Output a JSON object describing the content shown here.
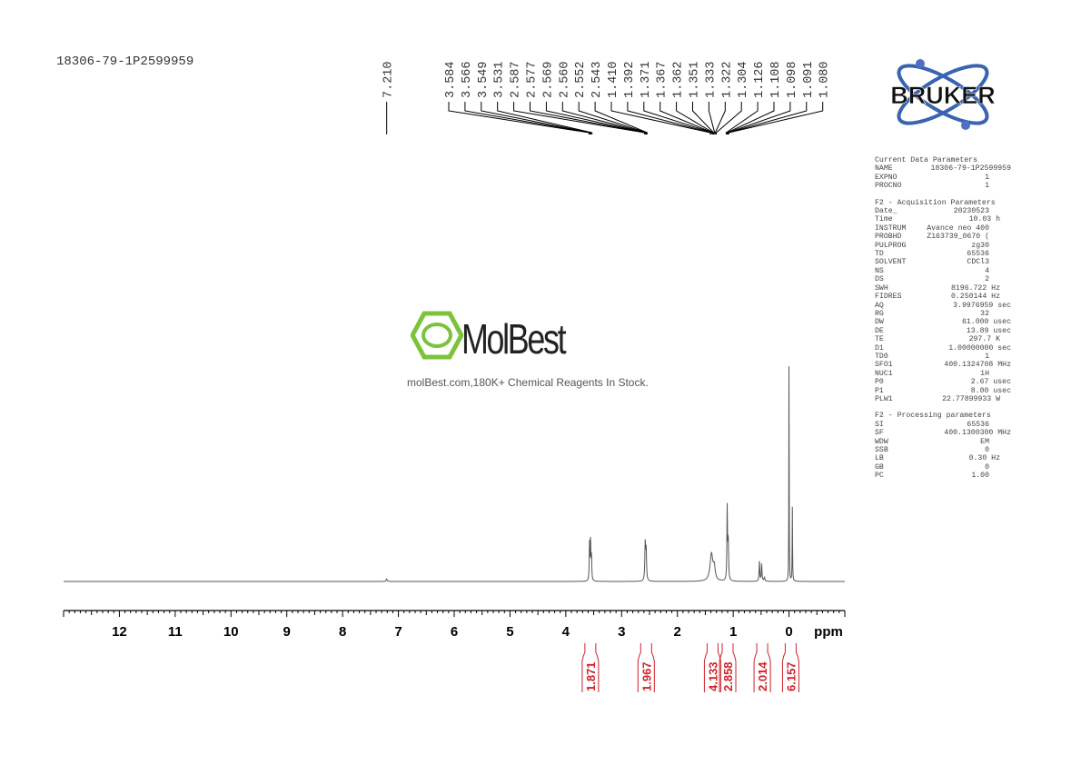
{
  "sample_name": "18306-79-1P2599959",
  "watermark": {
    "name": "MolBest",
    "tagline": "molBest.com,180K+ Chemical Reagents In Stock."
  },
  "logo": {
    "text": "BRUKER",
    "colors": {
      "orbit": "#3a64b0",
      "dot": "#4a72c0",
      "text": "#111111"
    }
  },
  "parameters": {
    "current_title": "Current Data Parameters",
    "current": [
      [
        "NAME",
        "18306-79-1P2599959"
      ],
      [
        "EXPNO",
        "1"
      ],
      [
        "PROCNO",
        "1"
      ]
    ],
    "acq_title": "F2 - Acquisition Parameters",
    "acq": [
      [
        "Date_",
        "20230523"
      ],
      [
        "Time",
        "10.03 h"
      ],
      [
        "INSTRUM",
        "Avance neo 400"
      ],
      [
        "PROBHD",
        "Z163739_0670 ("
      ],
      [
        "PULPROG",
        "zg30"
      ],
      [
        "TD",
        "65536"
      ],
      [
        "SOLVENT",
        "CDCl3"
      ],
      [
        "NS",
        "4"
      ],
      [
        "DS",
        "2"
      ],
      [
        "SWH",
        "8196.722 Hz"
      ],
      [
        "FIDRES",
        "0.250144 Hz"
      ],
      [
        "AQ",
        "3.9976959 sec"
      ],
      [
        "RG",
        "32"
      ],
      [
        "DW",
        "61.000 usec"
      ],
      [
        "DE",
        "13.89 usec"
      ],
      [
        "TE",
        "297.7 K"
      ],
      [
        "D1",
        "1.00000000 sec"
      ],
      [
        "TD0",
        "1"
      ],
      [
        "SFO1",
        "400.1324708 MHz"
      ],
      [
        "NUC1",
        "1H"
      ],
      [
        "P0",
        "2.67 usec"
      ],
      [
        "P1",
        "8.00 usec"
      ],
      [
        "PLW1",
        "22.77899933 W"
      ]
    ],
    "proc_title": "F2 - Processing parameters",
    "proc": [
      [
        "SI",
        "65536"
      ],
      [
        "SF",
        "400.1300300 MHz"
      ],
      [
        "WDW",
        "EM"
      ],
      [
        "SSB",
        "0"
      ],
      [
        "LB",
        "0.30 Hz"
      ],
      [
        "GB",
        "0"
      ],
      [
        "PC",
        "1.00"
      ]
    ]
  },
  "chart_data": {
    "type": "line",
    "title": "",
    "xlabel": "ppm",
    "xlim": [
      13,
      -1
    ],
    "x_ticks": [
      "12",
      "11",
      "10",
      "9",
      "8",
      "7",
      "6",
      "5",
      "4",
      "3",
      "2",
      "1",
      "0"
    ],
    "grid": false,
    "peak_labels_single": [
      "7.210"
    ],
    "peak_labels": [
      "3.584",
      "3.566",
      "3.549",
      "3.531",
      "2.587",
      "2.577",
      "2.569",
      "2.560",
      "2.552",
      "2.543",
      "1.410",
      "1.392",
      "1.371",
      "1.367",
      "1.362",
      "1.351",
      "1.333",
      "1.322",
      "1.304",
      "1.126",
      "1.108",
      "1.098",
      "1.091",
      "1.080"
    ],
    "peaks": [
      {
        "ppm": 7.21,
        "height": 0.01,
        "width": 0.01
      },
      {
        "ppm": 3.575,
        "height": 0.15,
        "width": 0.006
      },
      {
        "ppm": 3.557,
        "height": 0.16,
        "width": 0.006
      },
      {
        "ppm": 3.54,
        "height": 0.1,
        "width": 0.006
      },
      {
        "ppm": 2.577,
        "height": 0.15,
        "width": 0.008
      },
      {
        "ppm": 2.56,
        "height": 0.12,
        "width": 0.008
      },
      {
        "ppm": 1.39,
        "height": 0.11,
        "width": 0.03
      },
      {
        "ppm": 1.34,
        "height": 0.05,
        "width": 0.02
      },
      {
        "ppm": 1.108,
        "height": 0.29,
        "width": 0.006
      },
      {
        "ppm": 1.09,
        "height": 0.16,
        "width": 0.008
      },
      {
        "ppm": 0.53,
        "height": 0.08,
        "width": 0.007
      },
      {
        "ppm": 0.49,
        "height": 0.07,
        "width": 0.007
      },
      {
        "ppm": 0.44,
        "height": 0.015,
        "width": 0.01
      },
      {
        "ppm": 0.0,
        "height": 1.0,
        "width": 0.003
      },
      {
        "ppm": -0.06,
        "height": 0.3,
        "width": 0.004
      }
    ],
    "integrals": [
      {
        "ppm": 3.56,
        "value": "1.871"
      },
      {
        "ppm": 2.56,
        "value": "1.967"
      },
      {
        "ppm": 1.37,
        "value": "4.133"
      },
      {
        "ppm": 1.1,
        "value": "2.858"
      },
      {
        "ppm": 0.48,
        "value": "2.014"
      },
      {
        "ppm": -0.03,
        "value": "6.157"
      }
    ],
    "colors": {
      "spectrum": "#555555",
      "integral": "#d0222a",
      "axis": "#000000"
    }
  }
}
